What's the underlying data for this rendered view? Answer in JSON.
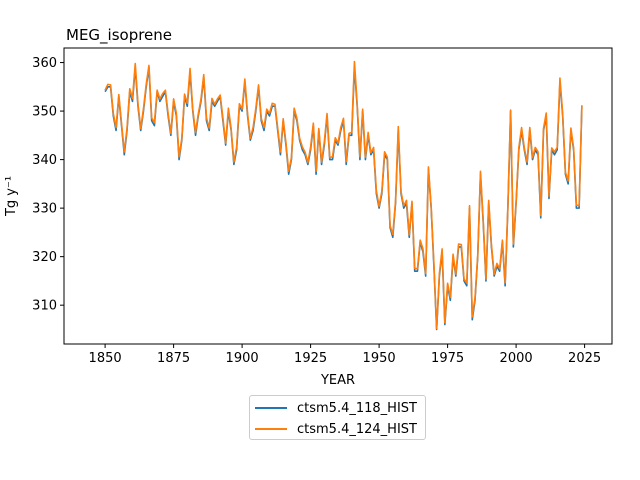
{
  "chart_data": {
    "type": "line",
    "title": "MEG_isoprene",
    "xlabel": "YEAR",
    "ylabel": "Tg y⁻¹",
    "xlim": [
      1835,
      2035
    ],
    "ylim": [
      302,
      363
    ],
    "xticks": [
      1850,
      1875,
      1900,
      1925,
      1950,
      1975,
      2000,
      2025
    ],
    "yticks": [
      310,
      320,
      330,
      340,
      350,
      360
    ],
    "x_start": 1850,
    "x_step": 1,
    "series": [
      {
        "name": "ctsm5.4_118_HIST",
        "color": "#1f77b4",
        "values": [
          354,
          355,
          355,
          349,
          346,
          353,
          347,
          341,
          346,
          354,
          352,
          359,
          351,
          346,
          350,
          355,
          359,
          348,
          347,
          354,
          352,
          353,
          354,
          349,
          345,
          352,
          349,
          340,
          344,
          353,
          351,
          358,
          350,
          345,
          349,
          352,
          357,
          348,
          346,
          352,
          351,
          352,
          353,
          348,
          343,
          350,
          346,
          339,
          342,
          351,
          350,
          356,
          349,
          344,
          346,
          350,
          355,
          348,
          346,
          350,
          349,
          351,
          351,
          346,
          341,
          348,
          343,
          337,
          340,
          350,
          348,
          344,
          342,
          341,
          339,
          342,
          347,
          337,
          346,
          339,
          343,
          349,
          340,
          340,
          344,
          343,
          346,
          348,
          339,
          345,
          345,
          359,
          351,
          340,
          350,
          340,
          345,
          341,
          342,
          333,
          330,
          333,
          341,
          340,
          326,
          324,
          331,
          346,
          333,
          330,
          331,
          324,
          331,
          317,
          317,
          323,
          321,
          316,
          338,
          330,
          318,
          305,
          316,
          321,
          306,
          314,
          311,
          320,
          316,
          322,
          322,
          315,
          314,
          330,
          307,
          311,
          320,
          337,
          327,
          315,
          331,
          322,
          316,
          318,
          317,
          323,
          314,
          330,
          350,
          322,
          331,
          342,
          346,
          342,
          339,
          346,
          340,
          342,
          341,
          328,
          346,
          349,
          332,
          342,
          341,
          342,
          356,
          349,
          337,
          335,
          346,
          342,
          330,
          330,
          351
        ]
      },
      {
        "name": "ctsm5.4_124_HIST",
        "color": "#ff7f0e",
        "values": [
          354.3,
          355.5,
          355.4,
          349.5,
          346.6,
          353.4,
          347.5,
          341.6,
          346.5,
          354.6,
          352.6,
          359.8,
          351.5,
          346.4,
          350.5,
          355.5,
          359.4,
          348.6,
          347.6,
          354.3,
          352.5,
          353.6,
          354.3,
          349.5,
          345.4,
          352.5,
          349.6,
          340.6,
          344.4,
          353.5,
          351.6,
          358.8,
          350.4,
          345.6,
          349.4,
          352.5,
          357.5,
          348.6,
          346.5,
          352.6,
          351.4,
          352.5,
          353.3,
          348.6,
          343.4,
          350.6,
          346.4,
          339.5,
          342.6,
          351.5,
          350.4,
          356.6,
          349.5,
          344.4,
          346.6,
          350.5,
          355.4,
          348.5,
          346.6,
          350.4,
          349.5,
          351.6,
          351.4,
          346.5,
          341.6,
          348.4,
          343.5,
          337.6,
          340.4,
          350.6,
          348.5,
          344.4,
          342.6,
          341.5,
          339.4,
          342.6,
          347.5,
          337.6,
          346.4,
          339.5,
          343.6,
          349.5,
          340.4,
          340.6,
          344.5,
          343.4,
          346.6,
          348.5,
          339.6,
          345.4,
          345.6,
          360.2,
          351.5,
          340.6,
          350.4,
          340.5,
          345.6,
          341.4,
          342.5,
          333.6,
          330.4,
          333.5,
          341.6,
          340.5,
          326.4,
          324.6,
          331.5,
          346.8,
          333.4,
          330.5,
          331.6,
          324.5,
          331.4,
          317.6,
          317.5,
          323.4,
          321.6,
          316.5,
          338.5,
          330.4,
          318.6,
          305.2,
          316.5,
          321.6,
          306.4,
          314.5,
          311.6,
          320.5,
          316.4,
          322.6,
          322.5,
          315.4,
          314.6,
          330.5,
          307.6,
          311.5,
          320.4,
          337.6,
          327.5,
          315.4,
          331.6,
          322.5,
          316.4,
          318.6,
          317.5,
          323.4,
          314.6,
          330.5,
          350.2,
          322.6,
          331.4,
          342.5,
          346.6,
          342.4,
          339.5,
          346.6,
          340.4,
          342.5,
          341.6,
          328.5,
          346.4,
          349.6,
          332.5,
          342.4,
          341.6,
          342.5,
          356.8,
          349.5,
          337.4,
          335.6,
          346.5,
          342.4,
          330.6,
          330.5,
          351.2
        ]
      }
    ],
    "legend_position": "bottom-center"
  }
}
